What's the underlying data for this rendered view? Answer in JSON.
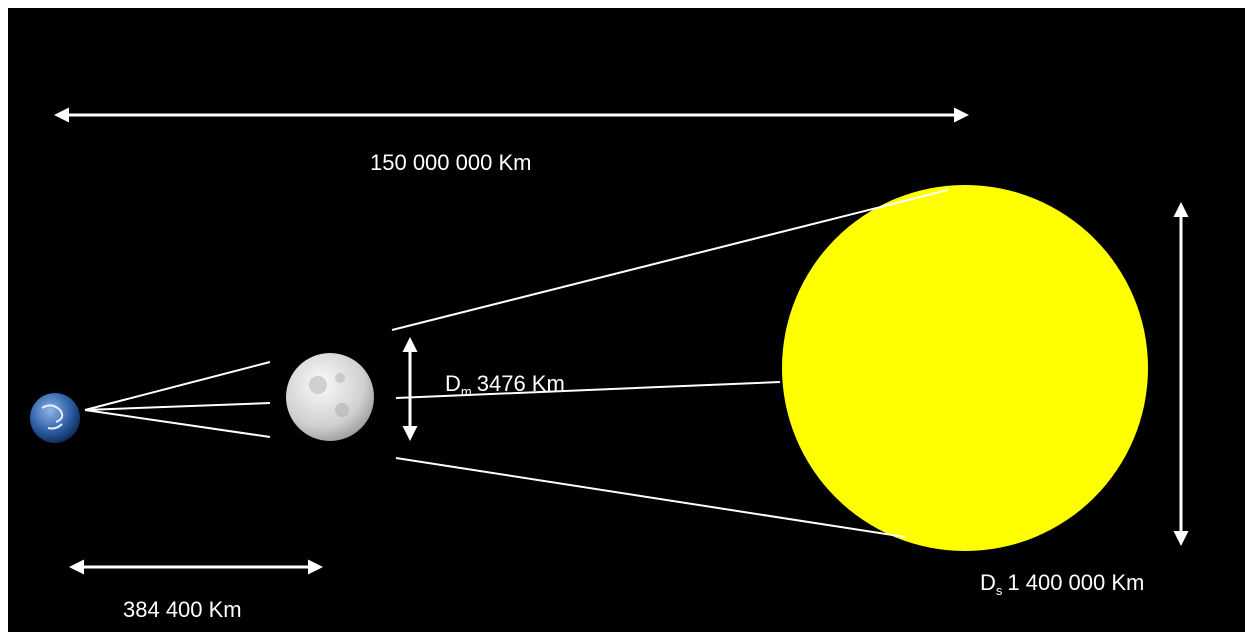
{
  "earth_sun_distance": "150 000 000 Km",
  "earth_moon_distance": "384 400 Km",
  "moon_diameter": {
    "symbol": "D",
    "subscript": "m",
    "text": "3476 Km"
  },
  "sun_diameter": {
    "symbol": "D",
    "subscript": "s",
    "text": "1 400 000 Km"
  }
}
